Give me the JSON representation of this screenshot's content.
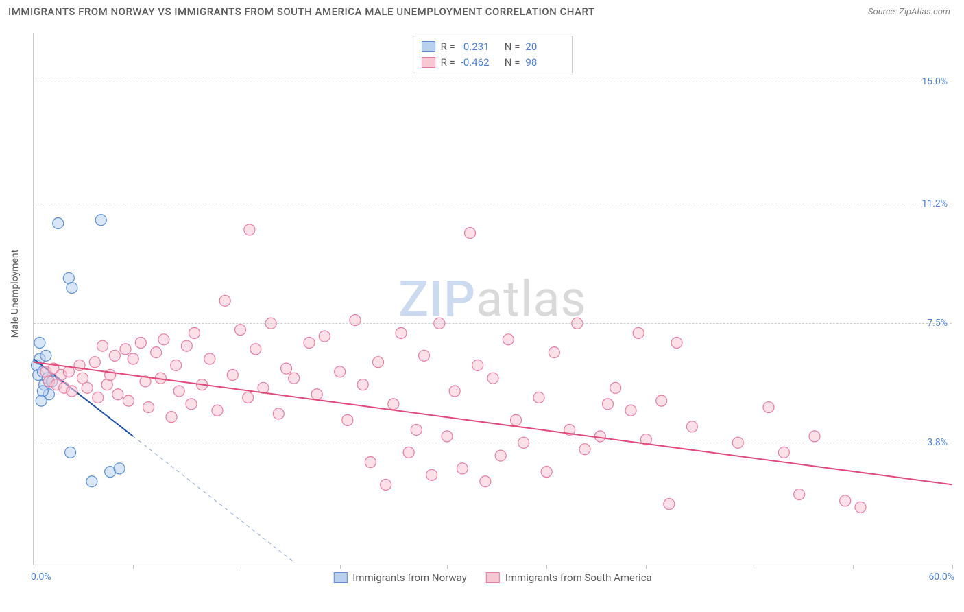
{
  "title": "IMMIGRANTS FROM NORWAY VS IMMIGRANTS FROM SOUTH AMERICA MALE UNEMPLOYMENT CORRELATION CHART",
  "source": "Source: ZipAtlas.com",
  "ylabel": "Male Unemployment",
  "watermark": {
    "part1": "ZIP",
    "part2": "atlas"
  },
  "stats": [
    {
      "r_label": "R =",
      "r": "-0.231",
      "n_label": "N =",
      "n": "20",
      "swatch_fill": "#b9d1ee",
      "swatch_border": "#5a8fd6"
    },
    {
      "r_label": "R =",
      "r": "-0.462",
      "n_label": "N =",
      "n": "98",
      "swatch_fill": "#f7c7d3",
      "swatch_border": "#e87ba0"
    }
  ],
  "legend": [
    {
      "label": "Immigrants from Norway",
      "fill": "#b9d1ee",
      "border": "#5a8fd6"
    },
    {
      "label": "Immigrants from South America",
      "fill": "#f7c7d3",
      "border": "#e87ba0"
    }
  ],
  "chart": {
    "type": "scatter",
    "xlim": [
      0,
      60
    ],
    "ylim": [
      0,
      16.5
    ],
    "ygrid": [
      3.8,
      7.5,
      11.2,
      15.0
    ],
    "ytick_labels": [
      "3.8%",
      "7.5%",
      "11.2%",
      "15.0%"
    ],
    "xtick_positions": [
      0,
      6.5,
      13.5,
      20,
      27,
      33.5,
      40,
      47,
      53.5,
      60
    ],
    "x_left_label": "0.0%",
    "x_right_label": "60.0%",
    "background": "#ffffff",
    "grid_color": "#d0d0d0",
    "axis_color": "#c8c8c8",
    "marker_radius": 8,
    "marker_opacity": 0.55,
    "series": [
      {
        "name": "norway",
        "fill": "#b9d1ee",
        "stroke": "#5a8fd6",
        "points": [
          [
            0.2,
            6.2
          ],
          [
            0.3,
            5.9
          ],
          [
            0.4,
            6.4
          ],
          [
            0.6,
            6.0
          ],
          [
            0.7,
            5.6
          ],
          [
            0.9,
            5.8
          ],
          [
            1.0,
            5.3
          ],
          [
            1.6,
            10.6
          ],
          [
            4.4,
            10.7
          ],
          [
            2.3,
            8.9
          ],
          [
            2.5,
            8.6
          ],
          [
            2.4,
            3.5
          ],
          [
            3.8,
            2.6
          ],
          [
            5.0,
            2.9
          ],
          [
            5.6,
            3.0
          ],
          [
            0.4,
            6.9
          ],
          [
            0.8,
            6.5
          ],
          [
            1.2,
            5.7
          ],
          [
            0.6,
            5.4
          ],
          [
            0.5,
            5.1
          ]
        ],
        "trend": {
          "x1": 0,
          "y1": 6.4,
          "x2": 6.5,
          "y2": 4.0,
          "color": "#1b4ea8",
          "width": 2,
          "dash_ext_x2": 17,
          "dash_ext_y2": 0.1
        }
      },
      {
        "name": "south_america",
        "fill": "#f7c7d3",
        "stroke": "#e87ba0",
        "points": [
          [
            0.8,
            6.0
          ],
          [
            1.0,
            5.7
          ],
          [
            1.3,
            6.1
          ],
          [
            1.5,
            5.6
          ],
          [
            1.8,
            5.9
          ],
          [
            2.0,
            5.5
          ],
          [
            2.3,
            6.0
          ],
          [
            2.5,
            5.4
          ],
          [
            3.0,
            6.2
          ],
          [
            3.2,
            5.8
          ],
          [
            3.5,
            5.5
          ],
          [
            4.0,
            6.3
          ],
          [
            4.2,
            5.2
          ],
          [
            4.5,
            6.8
          ],
          [
            4.8,
            5.6
          ],
          [
            5.0,
            5.9
          ],
          [
            5.3,
            6.5
          ],
          [
            5.5,
            5.3
          ],
          [
            6.0,
            6.7
          ],
          [
            6.2,
            5.1
          ],
          [
            6.5,
            6.4
          ],
          [
            7.0,
            6.9
          ],
          [
            7.3,
            5.7
          ],
          [
            7.5,
            4.9
          ],
          [
            8.0,
            6.6
          ],
          [
            8.3,
            5.8
          ],
          [
            8.5,
            7.0
          ],
          [
            9.0,
            4.6
          ],
          [
            9.3,
            6.2
          ],
          [
            9.5,
            5.4
          ],
          [
            10.0,
            6.8
          ],
          [
            10.3,
            5.0
          ],
          [
            10.5,
            7.2
          ],
          [
            11.0,
            5.6
          ],
          [
            11.5,
            6.4
          ],
          [
            12.0,
            4.8
          ],
          [
            12.5,
            8.2
          ],
          [
            13.0,
            5.9
          ],
          [
            13.5,
            7.3
          ],
          [
            14.0,
            5.2
          ],
          [
            14.5,
            6.7
          ],
          [
            15.0,
            5.5
          ],
          [
            15.5,
            7.5
          ],
          [
            16.0,
            4.7
          ],
          [
            16.5,
            6.1
          ],
          [
            17.0,
            5.8
          ],
          [
            14.1,
            10.4
          ],
          [
            18.0,
            6.9
          ],
          [
            18.5,
            5.3
          ],
          [
            19.0,
            7.1
          ],
          [
            20.0,
            6.0
          ],
          [
            20.5,
            4.5
          ],
          [
            21.0,
            7.6
          ],
          [
            21.5,
            5.6
          ],
          [
            22.0,
            3.2
          ],
          [
            22.5,
            6.3
          ],
          [
            23.0,
            2.5
          ],
          [
            23.5,
            5.0
          ],
          [
            24.0,
            7.2
          ],
          [
            24.5,
            3.5
          ],
          [
            25.0,
            4.2
          ],
          [
            25.5,
            6.5
          ],
          [
            26.0,
            2.8
          ],
          [
            26.5,
            7.5
          ],
          [
            27.0,
            4.0
          ],
          [
            27.5,
            5.4
          ],
          [
            28.0,
            3.0
          ],
          [
            28.5,
            10.3
          ],
          [
            29.0,
            6.2
          ],
          [
            29.5,
            2.6
          ],
          [
            30.0,
            5.8
          ],
          [
            30.5,
            3.4
          ],
          [
            31.0,
            7.0
          ],
          [
            31.5,
            4.5
          ],
          [
            32.0,
            3.8
          ],
          [
            33.0,
            5.2
          ],
          [
            33.5,
            2.9
          ],
          [
            34.0,
            6.6
          ],
          [
            35.0,
            4.2
          ],
          [
            35.5,
            7.5
          ],
          [
            36.0,
            3.6
          ],
          [
            37.0,
            4.0
          ],
          [
            38.0,
            5.5
          ],
          [
            39.0,
            4.8
          ],
          [
            40.0,
            3.9
          ],
          [
            41.0,
            5.1
          ],
          [
            42.0,
            6.9
          ],
          [
            43.0,
            4.3
          ],
          [
            39.5,
            7.2
          ],
          [
            46.0,
            3.8
          ],
          [
            48.0,
            4.9
          ],
          [
            49.0,
            3.5
          ],
          [
            50.0,
            2.2
          ],
          [
            51.0,
            4.0
          ],
          [
            53.0,
            2.0
          ],
          [
            54.0,
            1.8
          ],
          [
            41.5,
            1.9
          ],
          [
            37.5,
            5.0
          ]
        ],
        "trend": {
          "x1": 0,
          "y1": 6.3,
          "x2": 60,
          "y2": 2.5,
          "color": "#e24a7a",
          "width": 2
        }
      }
    ]
  }
}
